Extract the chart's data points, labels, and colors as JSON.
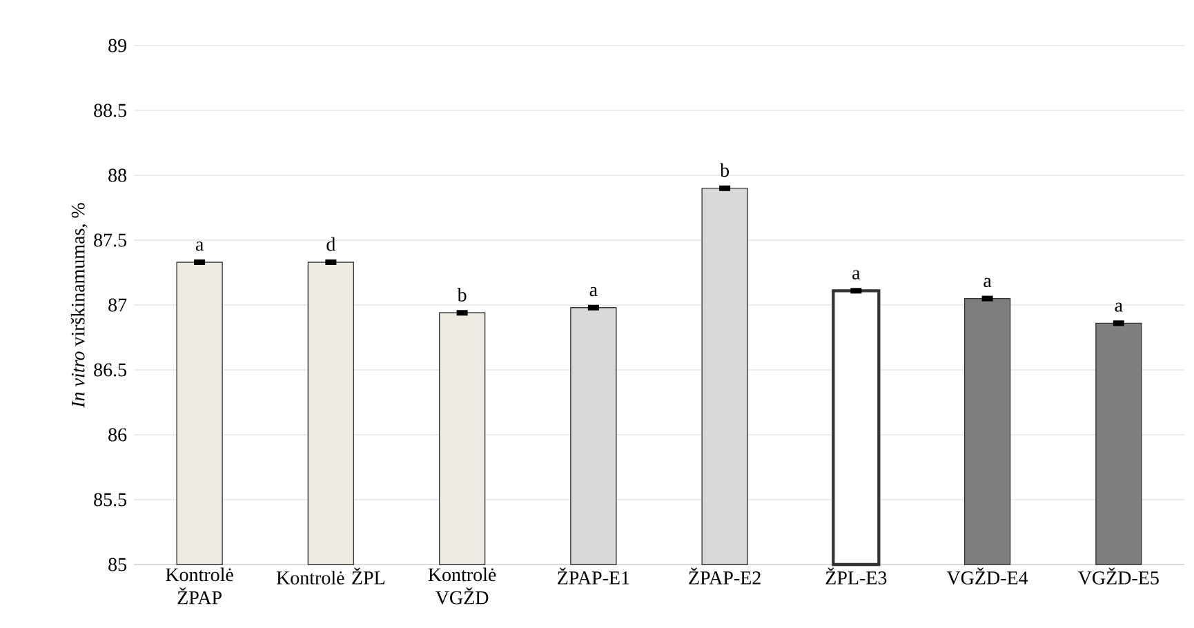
{
  "chart_data": {
    "type": "bar",
    "ylabel": "*In vitro* virškinamumas, %",
    "categories": [
      "Kontrolė ŽPAP",
      "Kontrolė ŽPL",
      "Kontrolė VGŽD",
      "ŽPAP-E1",
      "ŽPAP-E2",
      "ŽPL-E3",
      "VGŽD-E4",
      "VGŽD-E5"
    ],
    "values": [
      87.33,
      87.33,
      86.94,
      86.98,
      87.9,
      87.11,
      87.05,
      86.86
    ],
    "errors": [
      0.01,
      0.01,
      0.01,
      0.01,
      0.01,
      0.01,
      0.01,
      0.01
    ],
    "colors": [
      "#eeece1",
      "#eeece1",
      "#eeece1",
      "#d9d9d9",
      "#d9d9d9",
      "#ffffff",
      "#7f7f7f",
      "#7f7f7f"
    ],
    "ylim": [
      85,
      89
    ],
    "yticks": [
      85,
      85.5,
      86,
      86.5,
      87,
      87.5,
      88,
      88.5,
      89
    ],
    "grid": "y",
    "annotations": [
      {
        "text": "a",
        "x": "Kontrolė ŽPAP",
        "y": 87.33
      },
      {
        "text": "d",
        "x": "Kontrolė ŽPL",
        "y": 87.33
      },
      {
        "text": "b",
        "x": "Kontrolė VGŽD",
        "y": 86.94
      },
      {
        "text": "a",
        "x": "ŽPAP-E1",
        "y": 86.98
      },
      {
        "text": "b",
        "x": "ŽPAP-E2",
        "y": 87.9
      },
      {
        "text": "a",
        "x": "ŽPL-E3",
        "y": 87.11
      },
      {
        "text": "a",
        "x": "VGŽD-E4",
        "y": 87.05
      },
      {
        "text": "a",
        "x": "VGŽD-E5",
        "y": 86.86
      }
    ]
  }
}
